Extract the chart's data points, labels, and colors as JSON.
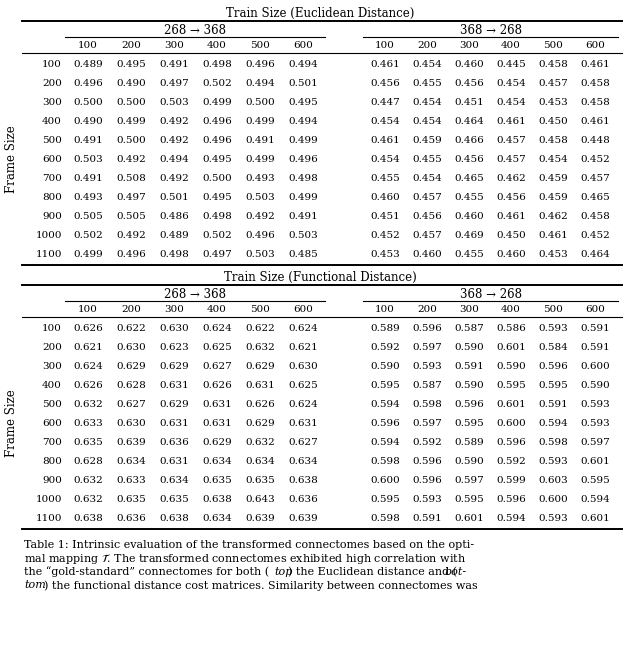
{
  "title_euc": "Train Size (Euclidean Distance)",
  "title_func": "Train Size (Functional Distance)",
  "col_header_left": "268 → 368",
  "col_header_right": "368 → 268",
  "train_sizes": [
    "100",
    "200",
    "300",
    "400",
    "500",
    "600"
  ],
  "frame_sizes": [
    "100",
    "200",
    "300",
    "400",
    "500",
    "600",
    "700",
    "800",
    "900",
    "1000",
    "1100"
  ],
  "frame_label": "Frame Size",
  "euc_left": [
    [
      0.489,
      0.495,
      0.491,
      0.498,
      0.496,
      0.494
    ],
    [
      0.496,
      0.49,
      0.497,
      0.502,
      0.494,
      0.501
    ],
    [
      0.5,
      0.5,
      0.503,
      0.499,
      0.5,
      0.495
    ],
    [
      0.49,
      0.499,
      0.492,
      0.496,
      0.499,
      0.494
    ],
    [
      0.491,
      0.5,
      0.492,
      0.496,
      0.491,
      0.499
    ],
    [
      0.503,
      0.492,
      0.494,
      0.495,
      0.499,
      0.496
    ],
    [
      0.491,
      0.508,
      0.492,
      0.5,
      0.493,
      0.498
    ],
    [
      0.493,
      0.497,
      0.501,
      0.495,
      0.503,
      0.499
    ],
    [
      0.505,
      0.505,
      0.486,
      0.498,
      0.492,
      0.491
    ],
    [
      0.502,
      0.492,
      0.489,
      0.502,
      0.496,
      0.503
    ],
    [
      0.499,
      0.496,
      0.498,
      0.497,
      0.503,
      0.485
    ]
  ],
  "euc_right": [
    [
      0.461,
      0.454,
      0.46,
      0.445,
      0.458,
      0.461
    ],
    [
      0.456,
      0.455,
      0.456,
      0.454,
      0.457,
      0.458
    ],
    [
      0.447,
      0.454,
      0.451,
      0.454,
      0.453,
      0.458
    ],
    [
      0.454,
      0.454,
      0.464,
      0.461,
      0.45,
      0.461
    ],
    [
      0.461,
      0.459,
      0.466,
      0.457,
      0.458,
      0.448
    ],
    [
      0.454,
      0.455,
      0.456,
      0.457,
      0.454,
      0.452
    ],
    [
      0.455,
      0.454,
      0.465,
      0.462,
      0.459,
      0.457
    ],
    [
      0.46,
      0.457,
      0.455,
      0.456,
      0.459,
      0.465
    ],
    [
      0.451,
      0.456,
      0.46,
      0.461,
      0.462,
      0.458
    ],
    [
      0.452,
      0.457,
      0.469,
      0.45,
      0.461,
      0.452
    ],
    [
      0.453,
      0.46,
      0.455,
      0.46,
      0.453,
      0.464
    ]
  ],
  "func_left": [
    [
      0.626,
      0.622,
      0.63,
      0.624,
      0.622,
      0.624
    ],
    [
      0.621,
      0.63,
      0.623,
      0.625,
      0.632,
      0.621
    ],
    [
      0.624,
      0.629,
      0.629,
      0.627,
      0.629,
      0.63
    ],
    [
      0.626,
      0.628,
      0.631,
      0.626,
      0.631,
      0.625
    ],
    [
      0.632,
      0.627,
      0.629,
      0.631,
      0.626,
      0.624
    ],
    [
      0.633,
      0.63,
      0.631,
      0.631,
      0.629,
      0.631
    ],
    [
      0.635,
      0.639,
      0.636,
      0.629,
      0.632,
      0.627
    ],
    [
      0.628,
      0.634,
      0.631,
      0.634,
      0.634,
      0.634
    ],
    [
      0.632,
      0.633,
      0.634,
      0.635,
      0.635,
      0.638
    ],
    [
      0.632,
      0.635,
      0.635,
      0.638,
      0.643,
      0.636
    ],
    [
      0.638,
      0.636,
      0.638,
      0.634,
      0.639,
      0.639
    ]
  ],
  "func_right": [
    [
      0.589,
      0.596,
      0.587,
      0.586,
      0.593,
      0.591
    ],
    [
      0.592,
      0.597,
      0.59,
      0.601,
      0.584,
      0.591
    ],
    [
      0.59,
      0.593,
      0.591,
      0.59,
      0.596,
      0.6
    ],
    [
      0.595,
      0.587,
      0.59,
      0.595,
      0.595,
      0.59
    ],
    [
      0.594,
      0.598,
      0.596,
      0.601,
      0.591,
      0.593
    ],
    [
      0.596,
      0.597,
      0.595,
      0.6,
      0.594,
      0.593
    ],
    [
      0.594,
      0.592,
      0.589,
      0.596,
      0.598,
      0.597
    ],
    [
      0.598,
      0.596,
      0.59,
      0.592,
      0.593,
      0.601
    ],
    [
      0.6,
      0.596,
      0.597,
      0.599,
      0.603,
      0.595
    ],
    [
      0.595,
      0.593,
      0.595,
      0.596,
      0.6,
      0.594
    ],
    [
      0.598,
      0.591,
      0.601,
      0.594,
      0.593,
      0.601
    ]
  ]
}
